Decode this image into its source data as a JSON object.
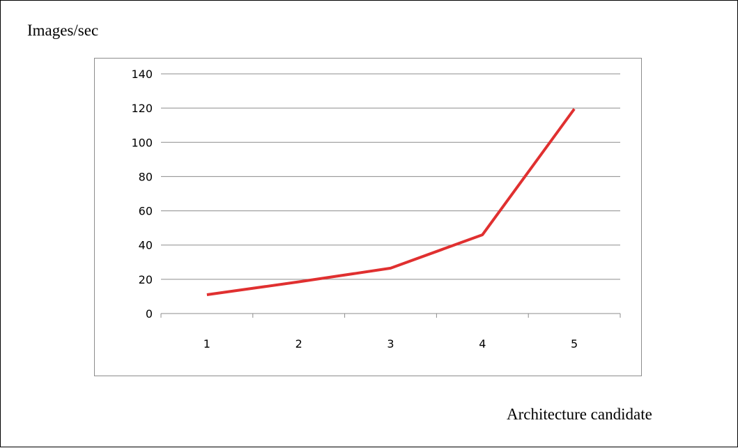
{
  "chart_data": {
    "type": "line",
    "title": "",
    "ylabel": "Images/sec",
    "xlabel": "Architecture candidate",
    "categories": [
      "1",
      "2",
      "3",
      "4",
      "5"
    ],
    "series": [
      {
        "values": [
          11,
          18.5,
          26.5,
          46,
          119.5
        ],
        "color": "#e03030"
      }
    ],
    "yticks": [
      "0",
      "20",
      "40",
      "60",
      "80",
      "100",
      "120",
      "140"
    ],
    "ylim": [
      0,
      140
    ],
    "grid": true,
    "legend": "none"
  }
}
